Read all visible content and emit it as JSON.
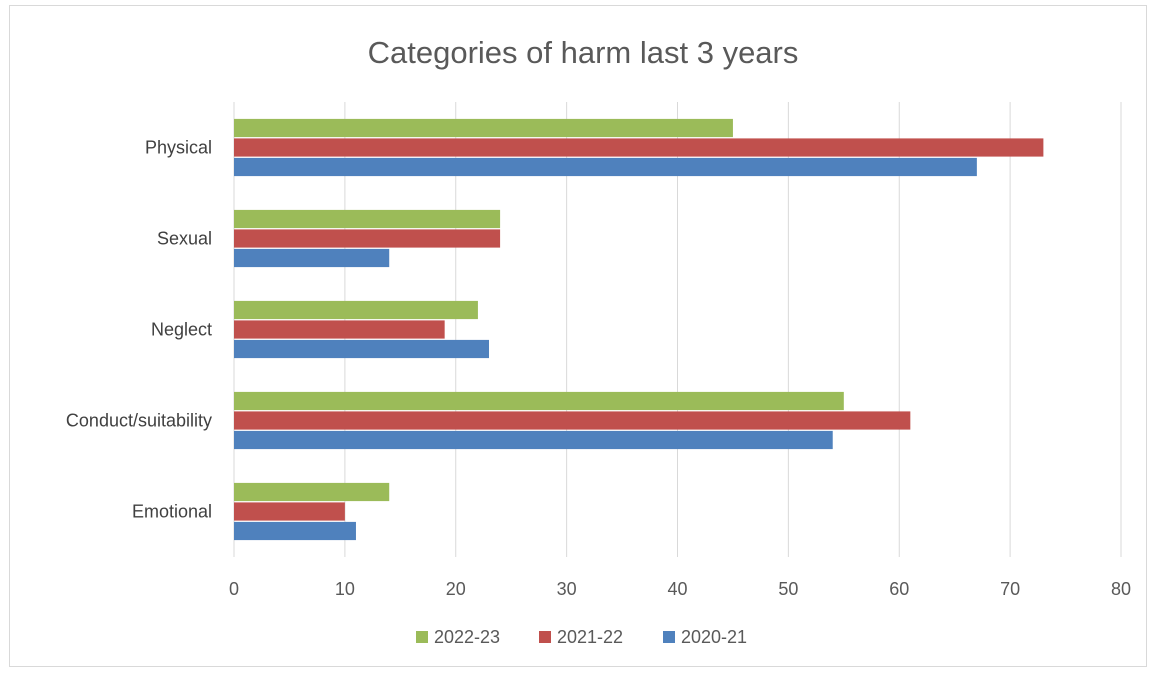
{
  "chart_data": {
    "type": "bar",
    "orientation": "horizontal",
    "title": "Categories of harm last 3 years",
    "categories": [
      "Physical",
      "Sexual",
      "Neglect",
      "Conduct/suitability",
      "Emotional"
    ],
    "series": [
      {
        "name": "2022-23",
        "color": "#9bbb59",
        "values": [
          45,
          24,
          22,
          55,
          14
        ]
      },
      {
        "name": "2021-22",
        "color": "#c0504d",
        "values": [
          73,
          24,
          19,
          61,
          10
        ]
      },
      {
        "name": "2020-21",
        "color": "#4f81bd",
        "values": [
          67,
          14,
          23,
          54,
          11
        ]
      }
    ],
    "xlim": [
      0,
      80
    ],
    "xticks": [
      "0",
      "10",
      "20",
      "30",
      "40",
      "50",
      "60",
      "70",
      "80"
    ],
    "grid": true,
    "legend_position": "bottom"
  }
}
